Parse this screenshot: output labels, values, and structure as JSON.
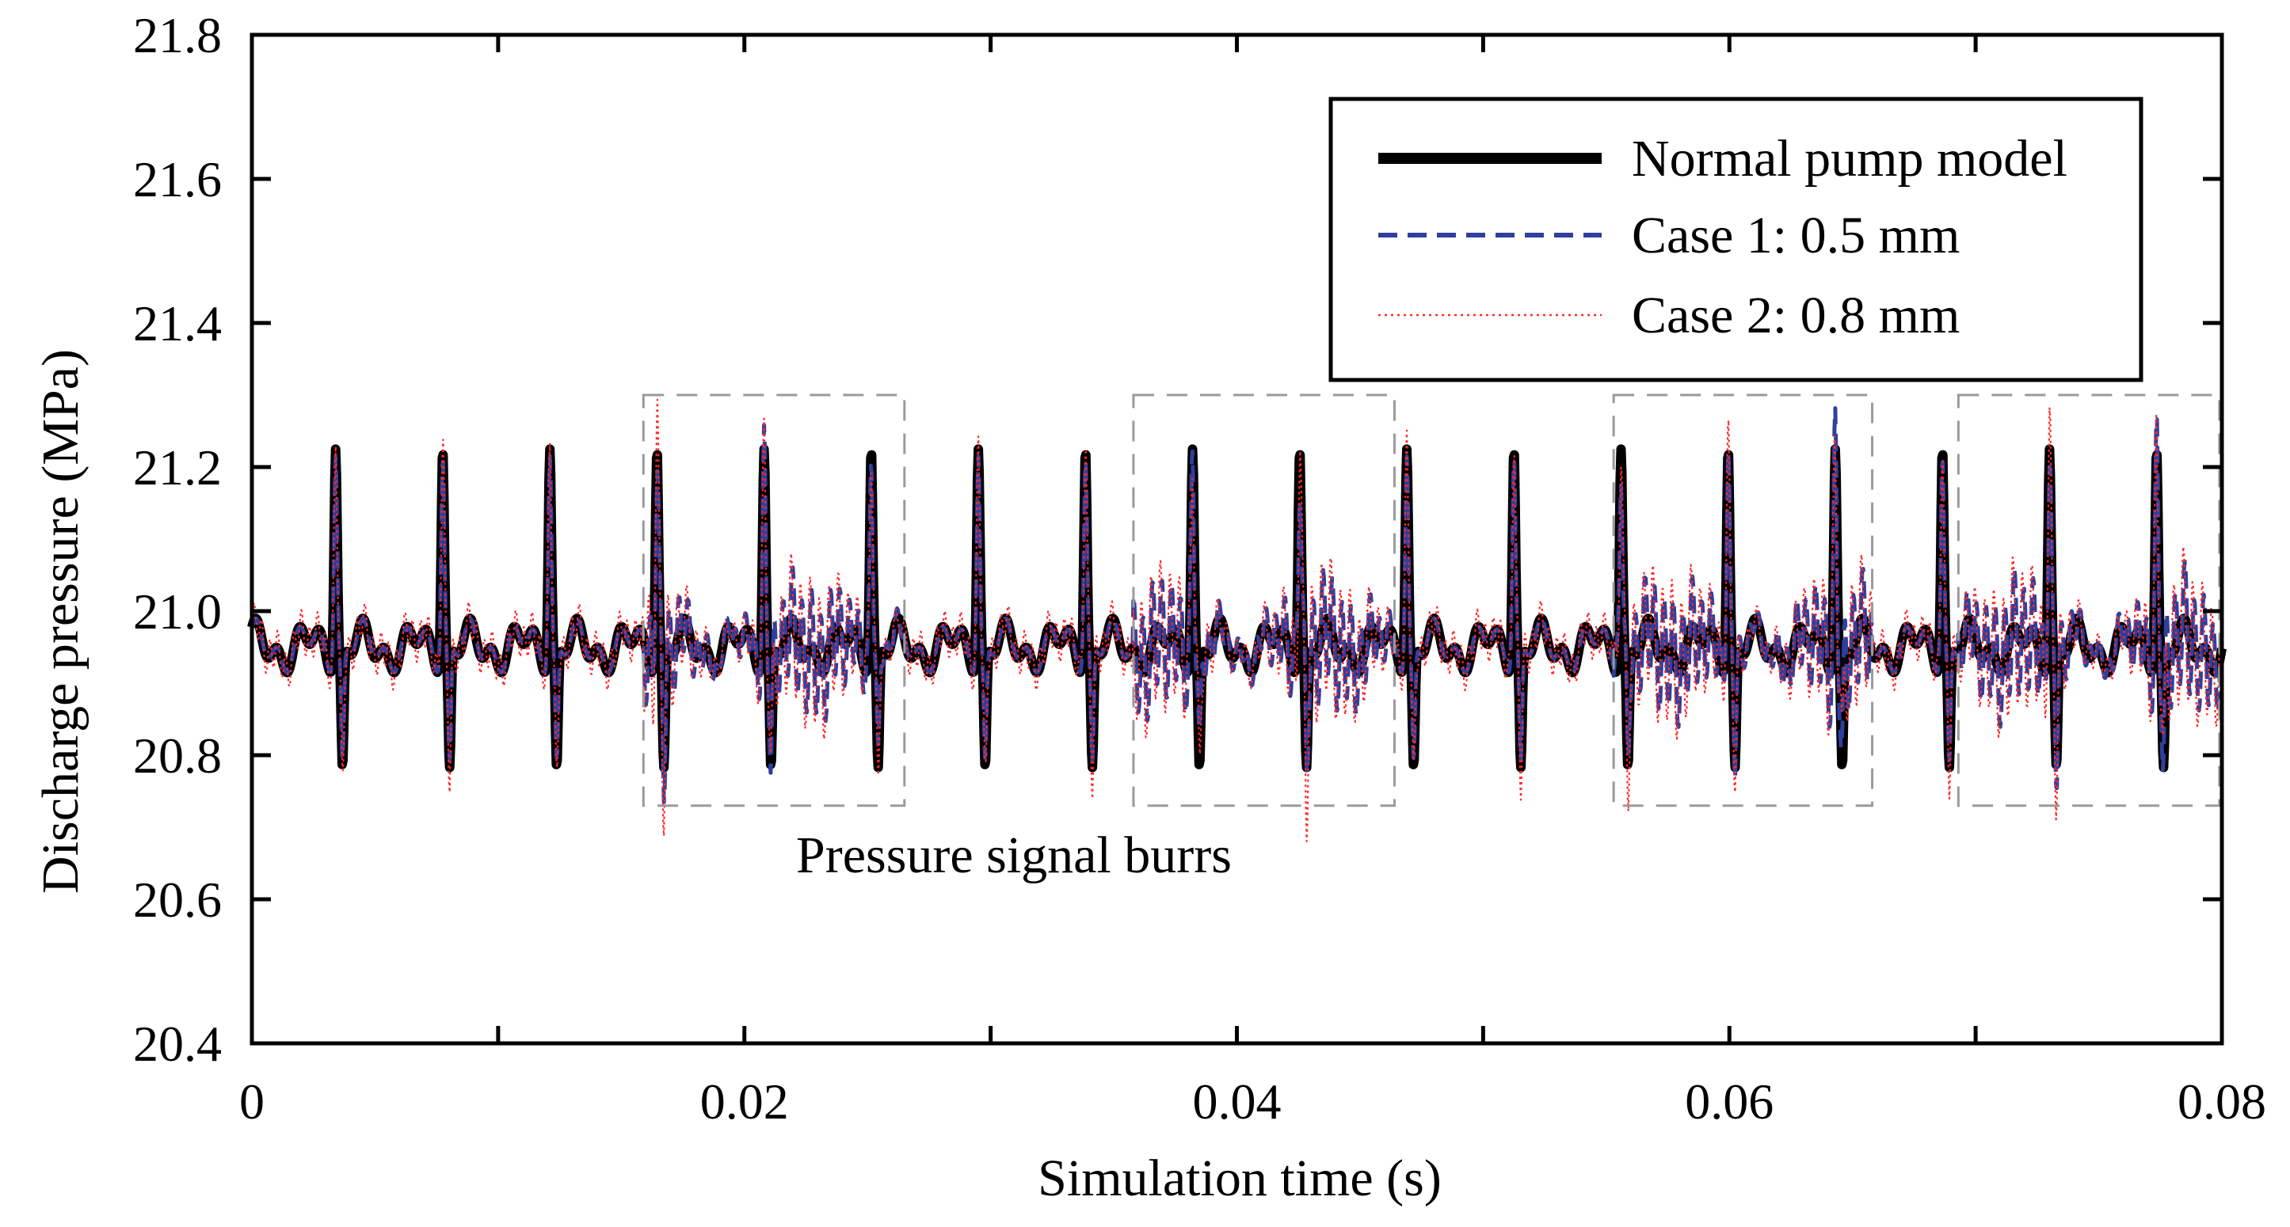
{
  "chart_data": {
    "type": "line",
    "xlabel": "Simulation time (s)",
    "ylabel": "Discharge pressure (MPa)",
    "xlim": [
      0,
      0.08
    ],
    "ylim": [
      20.4,
      21.8
    ],
    "x_ticks": [
      "0",
      "0.02",
      "0.04",
      "0.06",
      "0.08"
    ],
    "y_ticks": [
      "20.4",
      "20.6",
      "20.8",
      "21.0",
      "21.2",
      "21.4",
      "21.6",
      "21.8"
    ],
    "grid": false,
    "legend_position": "top-right",
    "pulse_period_s": 0.00435,
    "series": [
      {
        "name": "Normal pump model",
        "color": "#000000",
        "style": "solid-thick",
        "baseline": 20.95,
        "ripple_amplitude": 0.03,
        "spike_max": 21.25,
        "spike_min": 20.78
      },
      {
        "name": "Case 1: 0.5 mm",
        "color": "#2e3f9e",
        "style": "dashed",
        "baseline": 20.95,
        "ripple_amplitude": 0.08,
        "spike_max": 21.24,
        "spike_min": 20.79
      },
      {
        "name": "Case 2: 0.8 mm",
        "color": "#ff2a2a",
        "style": "dotted",
        "baseline": 20.95,
        "ripple_amplitude": 0.1,
        "spike_max": 21.26,
        "spike_min": 20.76
      }
    ],
    "annotation": {
      "text": "Pressure signal burrs",
      "regions": [
        {
          "x0": 0.0159,
          "x1": 0.0265,
          "y0": 20.73,
          "y1": 21.3
        },
        {
          "x0": 0.0358,
          "x1": 0.0464,
          "y0": 20.73,
          "y1": 21.3
        },
        {
          "x0": 0.0553,
          "x1": 0.0658,
          "y0": 20.73,
          "y1": 21.3
        },
        {
          "x0": 0.0693,
          "x1": 0.0799,
          "y0": 20.73,
          "y1": 21.3
        }
      ]
    }
  }
}
